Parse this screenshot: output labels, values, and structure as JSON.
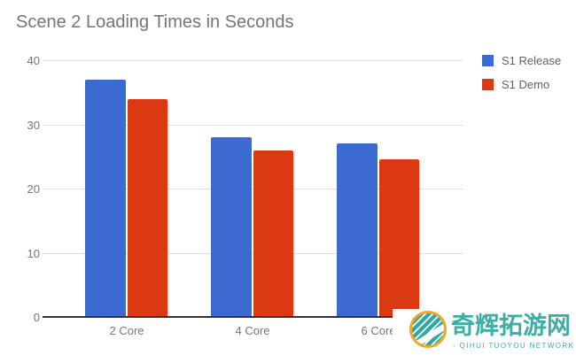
{
  "title": "Scene 2 Loading Times in Seconds",
  "chart_data": {
    "type": "bar",
    "title": "Scene 2 Loading Times in Seconds",
    "categories": [
      "2 Core",
      "4 Core",
      "6 Core"
    ],
    "series": [
      {
        "name": "S1 Release",
        "color": "#3B6BD1",
        "values": [
          37,
          28,
          27
        ]
      },
      {
        "name": "S1 Demo",
        "color": "#DB3912",
        "values": [
          34,
          26,
          24.5
        ]
      }
    ],
    "xlabel": "",
    "ylabel": "",
    "ylim": [
      0,
      40
    ],
    "yticks": [
      0,
      10,
      20,
      30,
      40
    ],
    "grid": true,
    "legend_position": "top-right"
  },
  "watermark": {
    "brand_cn": "奇辉拓游网",
    "brand_en": "- QIHUI TUOYOU NETWORK -",
    "text_color": "#3BAEA8",
    "logo_ring_color": "#F5A623",
    "logo_fill_color": "#2FA8A2"
  },
  "colors": {
    "title_text": "#757575",
    "axis_text": "#757575",
    "gridline": "#E0E0E0",
    "axis_line": "#333333",
    "background": "#FFFFFF"
  }
}
